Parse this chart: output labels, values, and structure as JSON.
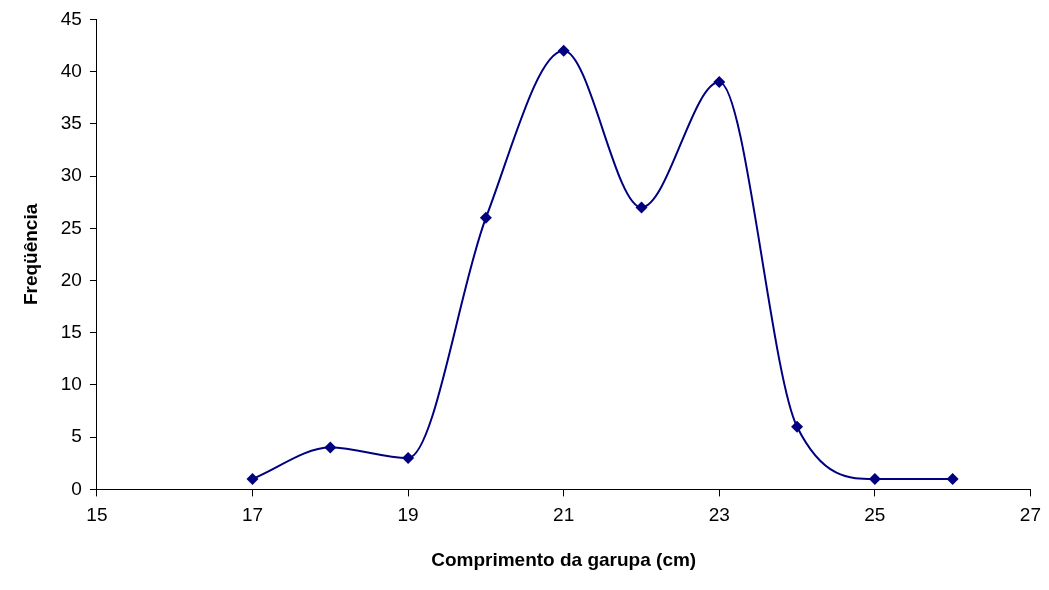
{
  "chart_data": {
    "type": "line",
    "xlabel": "Comprimento da garupa (cm)",
    "ylabel": "Freqüência",
    "x": [
      17,
      18,
      19,
      20,
      21,
      22,
      23,
      24,
      25,
      26
    ],
    "values": [
      1,
      4,
      3,
      26,
      42,
      27,
      39,
      6,
      1,
      1
    ],
    "color": "#000080",
    "marker": "diamond",
    "xlim": [
      15,
      27
    ],
    "xticks": [
      15,
      17,
      19,
      21,
      23,
      25,
      27
    ],
    "ylim": [
      0,
      45
    ],
    "yticks": [
      0,
      5,
      10,
      15,
      20,
      25,
      30,
      35,
      40,
      45
    ]
  }
}
